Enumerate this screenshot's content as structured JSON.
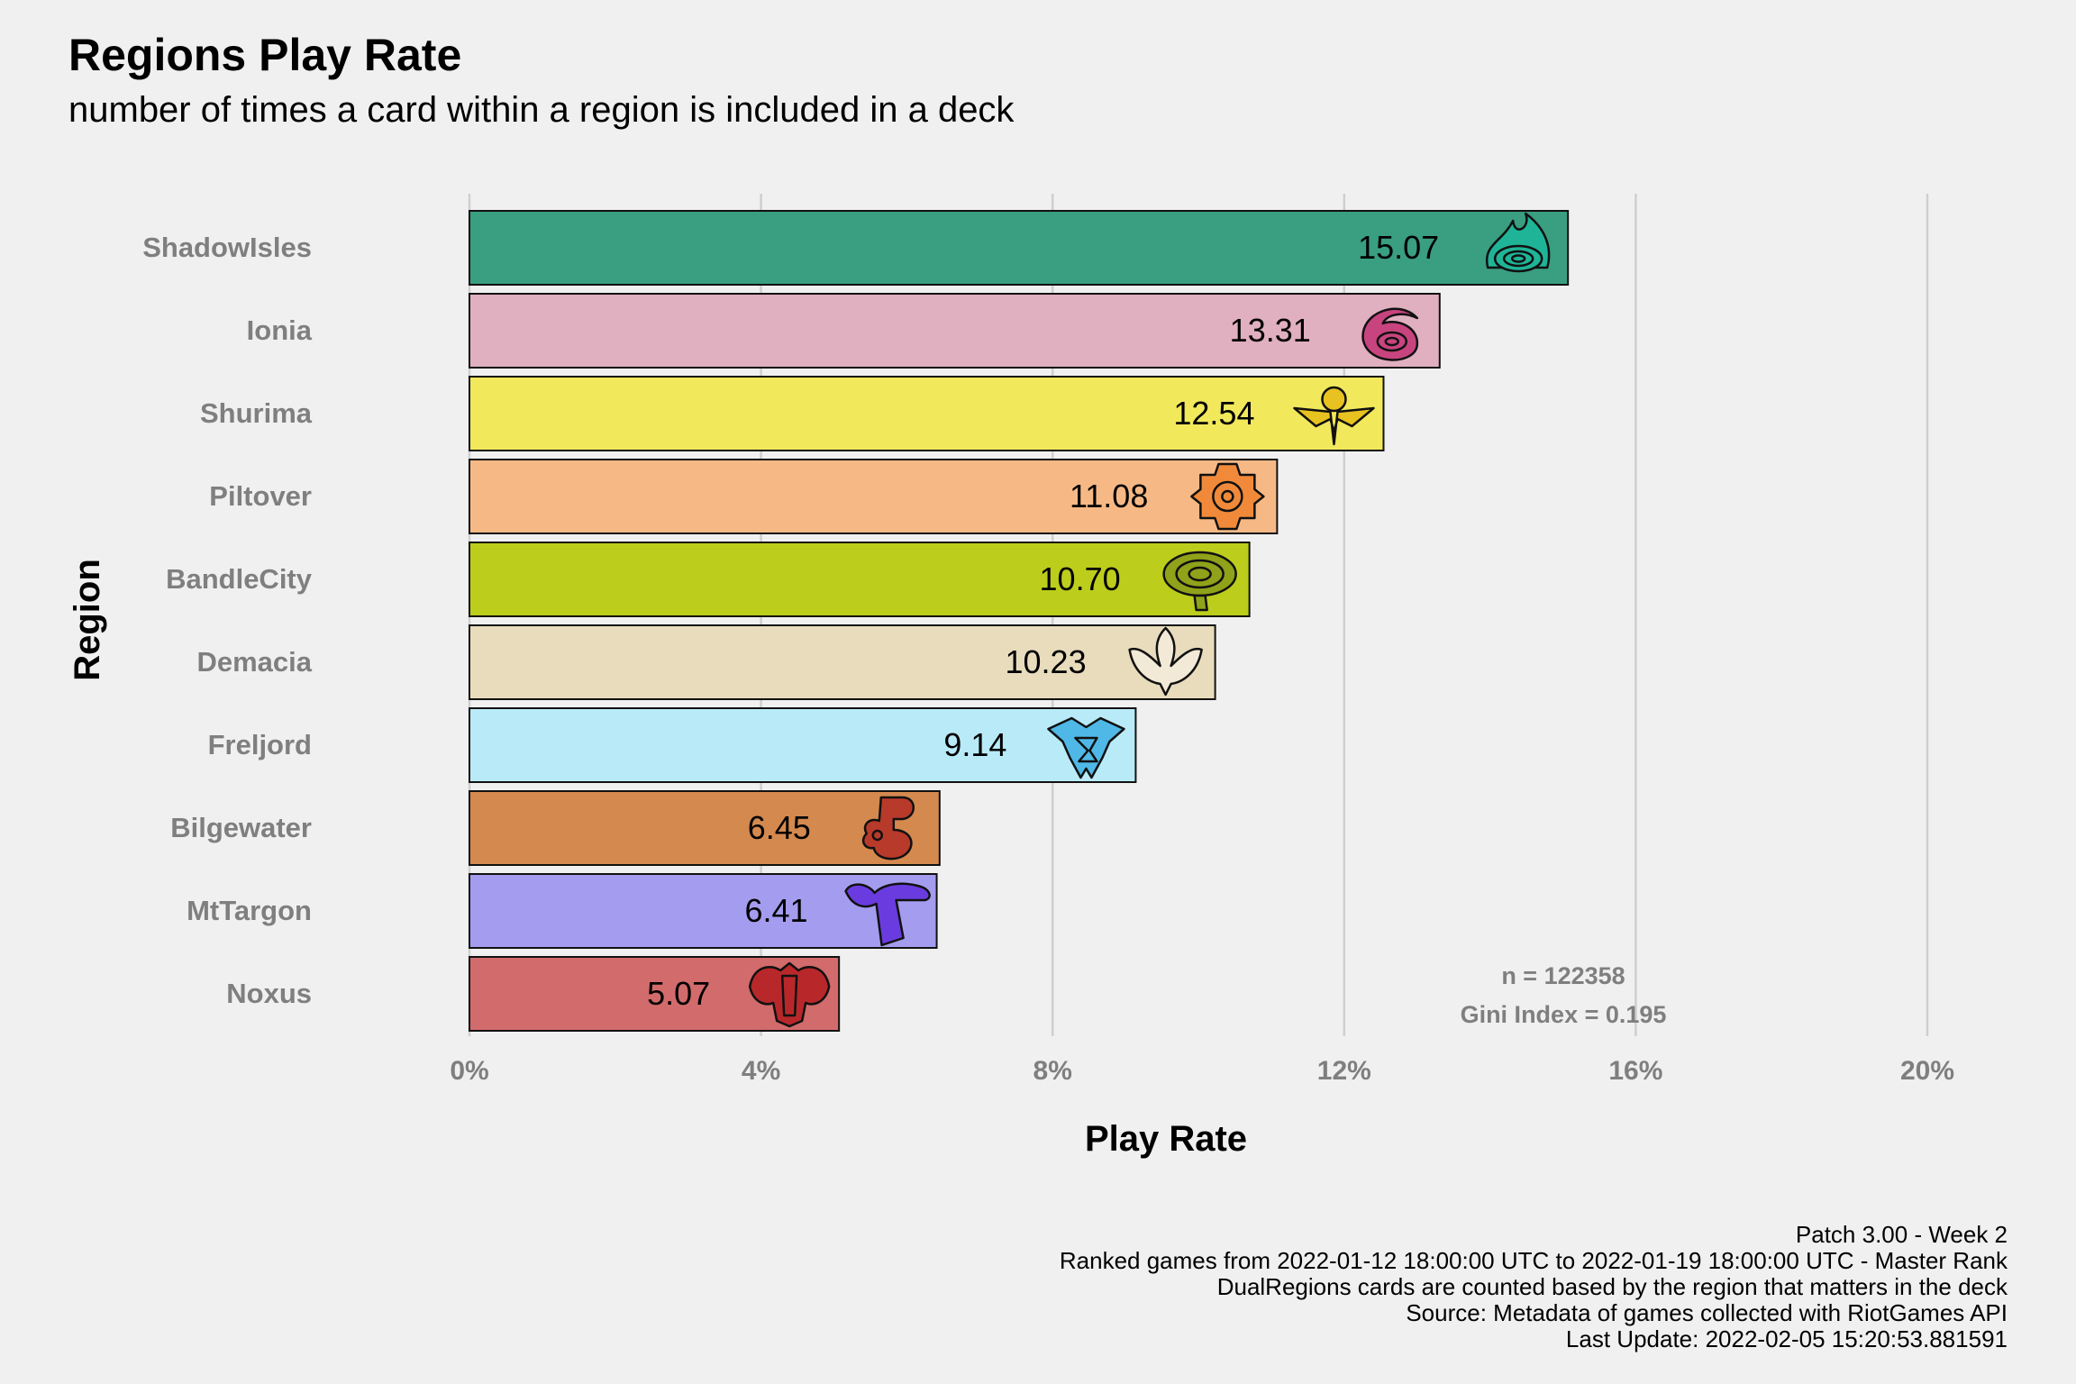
{
  "chart_data": {
    "type": "bar",
    "orientation": "horizontal",
    "title": "Regions Play Rate",
    "subtitle": "number of times a card within a region is included in a deck",
    "xlabel": "Play Rate",
    "ylabel": "Region",
    "xlim": [
      0,
      20
    ],
    "x_ticks": [
      0,
      4,
      8,
      12,
      16,
      20
    ],
    "x_tick_labels": [
      "0%",
      "4%",
      "8%",
      "12%",
      "16%",
      "20%"
    ],
    "grid": "vertical major",
    "categories": [
      "ShadowIsles",
      "Ionia",
      "Shurima",
      "Piltover",
      "BandleCity",
      "Demacia",
      "Freljord",
      "Bilgewater",
      "MtTargon",
      "Noxus"
    ],
    "values": [
      15.07,
      13.31,
      12.54,
      11.08,
      10.7,
      10.23,
      9.14,
      6.45,
      6.41,
      5.07
    ],
    "value_labels": [
      "15.07",
      "13.31",
      "12.54",
      "11.08",
      "10.70",
      "10.23",
      "9.14",
      "6.45",
      "6.41",
      "5.07"
    ],
    "colors": [
      "#3a9e80",
      "#e0afc0",
      "#f2e85c",
      "#f6b986",
      "#bccd1c",
      "#e8dcbc",
      "#b9eaf7",
      "#d4894f",
      "#a49cee",
      "#d26b6b"
    ],
    "icon_colors": [
      "#1fb497",
      "#c8447e",
      "#e8c220",
      "#f08a3a",
      "#8fa21a",
      "#f2ead6",
      "#4fb8e6",
      "#b83a2a",
      "#6a3ce0",
      "#b8282a"
    ],
    "icons": [
      "shadow-isles-icon",
      "ionia-icon",
      "shurima-icon",
      "piltover-icon",
      "bandle-city-icon",
      "demacia-icon",
      "freljord-icon",
      "bilgewater-icon",
      "mt-targon-icon",
      "noxus-icon"
    ],
    "annotation": [
      "n = 122358",
      "Gini Index = 0.195"
    ]
  },
  "caption": [
    "Patch 3.00 - Week 2",
    "Ranked games from 2022-01-12 18:00:00 UTC to 2022-01-19 18:00:00 UTC - Master Rank",
    "DualRegions cards are counted based by the region that matters in the deck",
    "Source: Metadata of games collected with RiotGames API",
    "Last Update: 2022-02-05 15:20:53.881591"
  ]
}
